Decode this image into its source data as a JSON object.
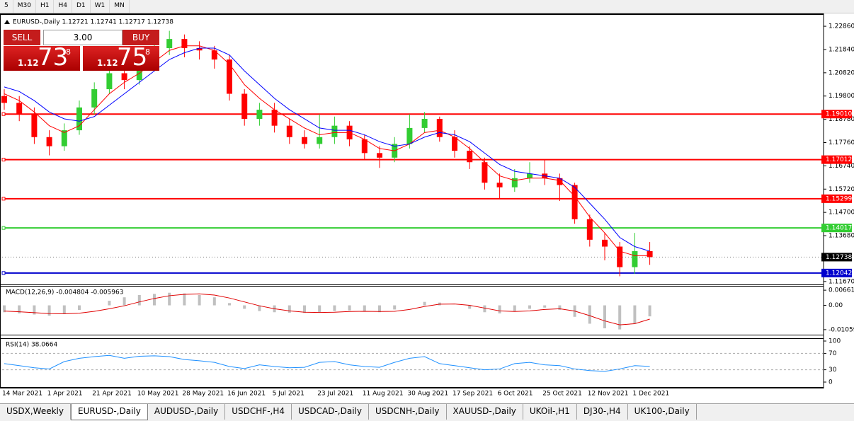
{
  "toolbar": [
    "5",
    "M30",
    "H1",
    "H4",
    "D1",
    "W1",
    "MN"
  ],
  "trade_panel": {
    "sell": "SELL",
    "buy": "BUY",
    "volume": "3.00",
    "bid": {
      "big": "1.12",
      "pips": "73",
      "point": "8"
    },
    "ask": {
      "big": "1.12",
      "pips": "75",
      "point": "8"
    }
  },
  "chart_data": [
    {
      "type": "candlestick",
      "title": "EURUSD-,Daily  1.12721 1.12741 1.12717 1.12738",
      "categories": [
        "14 Mar 2021",
        null,
        null,
        "1 Apr 2021",
        null,
        null,
        "21 Apr 2021",
        null,
        null,
        "10 May 2021",
        null,
        null,
        "28 May 2021",
        null,
        null,
        "16 Jun 2021",
        null,
        null,
        "5 Jul 2021",
        null,
        null,
        "23 Jul 2021",
        null,
        null,
        "11 Aug 2021",
        null,
        null,
        "30 Aug 2021",
        null,
        null,
        "17 Sep 2021",
        null,
        null,
        "6 Oct 2021",
        null,
        null,
        "25 Oct 2021",
        null,
        null,
        "12 Nov 2021",
        null,
        null,
        "1 Dec 2021",
        null
      ],
      "open": [
        1.198,
        1.195,
        1.19,
        1.18,
        1.176,
        1.183,
        1.193,
        1.201,
        1.208,
        1.205,
        1.215,
        1.219,
        1.223,
        1.219,
        1.218,
        1.214,
        1.199,
        1.188,
        1.192,
        1.185,
        1.18,
        1.177,
        1.18,
        1.185,
        1.179,
        1.173,
        1.171,
        1.177,
        1.184,
        1.188,
        1.18,
        1.174,
        1.169,
        1.16,
        1.158,
        1.162,
        1.164,
        1.162,
        1.159,
        1.144,
        1.135,
        1.132,
        1.123,
        1.13
      ],
      "high": [
        1.201,
        1.198,
        1.193,
        1.183,
        1.186,
        1.196,
        1.204,
        1.211,
        1.212,
        1.218,
        1.223,
        1.2266,
        1.225,
        1.222,
        1.22,
        1.216,
        1.201,
        1.195,
        1.195,
        1.188,
        1.183,
        1.19,
        1.189,
        1.187,
        1.181,
        1.176,
        1.18,
        1.19,
        1.191,
        1.189,
        1.183,
        1.176,
        1.171,
        1.164,
        1.166,
        1.169,
        1.17,
        1.164,
        1.16,
        1.146,
        1.138,
        1.134,
        1.138,
        1.134
      ],
      "low": [
        1.192,
        1.187,
        1.177,
        1.172,
        1.174,
        1.181,
        1.19,
        1.199,
        1.201,
        1.203,
        1.212,
        1.216,
        1.215,
        1.214,
        1.21,
        1.196,
        1.185,
        1.185,
        1.182,
        1.177,
        1.175,
        1.175,
        1.177,
        1.176,
        1.17,
        1.1665,
        1.169,
        1.175,
        1.182,
        1.178,
        1.171,
        1.166,
        1.157,
        1.153,
        1.156,
        1.16,
        1.159,
        1.152,
        1.142,
        1.132,
        1.126,
        1.119,
        1.12,
        1.124
      ],
      "close": [
        1.195,
        1.19,
        1.18,
        1.176,
        1.183,
        1.193,
        1.201,
        1.208,
        1.205,
        1.215,
        1.219,
        1.223,
        1.219,
        1.218,
        1.214,
        1.199,
        1.188,
        1.192,
        1.185,
        1.18,
        1.177,
        1.18,
        1.185,
        1.179,
        1.173,
        1.171,
        1.177,
        1.184,
        1.188,
        1.18,
        1.174,
        1.169,
        1.16,
        1.158,
        1.162,
        1.164,
        1.162,
        1.159,
        1.144,
        1.135,
        1.132,
        1.123,
        1.13,
        1.12738
      ],
      "up_color": "#32cd32",
      "down_color": "#ff0000",
      "series": [
        {
          "color": "#ff0000",
          "values": [
            1.199,
            1.196,
            1.191,
            1.185,
            1.182,
            1.185,
            1.192,
            1.199,
            1.204,
            1.208,
            1.213,
            1.218,
            1.22,
            1.22,
            1.218,
            1.212,
            1.203,
            1.197,
            1.192,
            1.188,
            1.184,
            1.181,
            1.182,
            1.182,
            1.179,
            1.175,
            1.174,
            1.177,
            1.182,
            1.183,
            1.18,
            1.175,
            1.169,
            1.163,
            1.161,
            1.162,
            1.162,
            1.161,
            1.154,
            1.145,
            1.138,
            1.13,
            1.128,
            1.128
          ]
        },
        {
          "color": "#0000ff",
          "values": [
            1.202,
            1.2,
            1.196,
            1.191,
            1.188,
            1.187,
            1.189,
            1.194,
            1.199,
            1.204,
            1.209,
            1.214,
            1.217,
            1.219,
            1.219,
            1.216,
            1.209,
            1.203,
            1.197,
            1.192,
            1.188,
            1.184,
            1.183,
            1.183,
            1.181,
            1.178,
            1.176,
            1.177,
            1.18,
            1.182,
            1.181,
            1.178,
            1.173,
            1.168,
            1.165,
            1.164,
            1.163,
            1.162,
            1.158,
            1.151,
            1.144,
            1.136,
            1.132,
            1.13
          ]
        }
      ],
      "levels": [
        {
          "value": 1.1901,
          "label": "1.19010",
          "color": "#ff0000"
        },
        {
          "value": 1.17012,
          "label": "1.17012",
          "color": "#ff0000"
        },
        {
          "value": 1.15299,
          "label": "1.15299",
          "color": "#ff0000"
        },
        {
          "value": 1.14017,
          "label": "1.14017",
          "color": "#32cd32"
        },
        {
          "value": 1.12042,
          "label": "1.12042",
          "color": "#0000cd"
        }
      ],
      "current_price": {
        "value": 1.12738,
        "label": "1.12738"
      },
      "ylim": [
        1.1151,
        1.2339
      ],
      "yticks": [
        {
          "value": 1.2286,
          "label": "1.22860"
        },
        {
          "value": 1.2184,
          "label": "1.21840"
        },
        {
          "value": 1.2082,
          "label": "1.20820"
        },
        {
          "value": 1.198,
          "label": "1.19800"
        },
        {
          "value": 1.1878,
          "label": "1.18780"
        },
        {
          "value": 1.1776,
          "label": "1.17760"
        },
        {
          "value": 1.1674,
          "label": "1.16740"
        },
        {
          "value": 1.1572,
          "label": "1.15720"
        },
        {
          "value": 1.147,
          "label": "1.14700"
        },
        {
          "value": 1.1368,
          "label": "1.13680"
        },
        {
          "value": 1.1167,
          "label": "1.11670"
        }
      ]
    },
    {
      "type": "macd",
      "title": "MACD(12,26,9) -0.004804 -0.005963",
      "color": "#c0c0c0",
      "values": [
        -0.003,
        -0.0035,
        -0.004,
        -0.0045,
        -0.0038,
        -0.002,
        0.0,
        0.002,
        0.0035,
        0.0045,
        0.005,
        0.0055,
        0.0052,
        0.0045,
        0.0035,
        0.001,
        -0.0015,
        -0.0025,
        -0.003,
        -0.0032,
        -0.0033,
        -0.003,
        -0.0025,
        -0.0022,
        -0.0025,
        -0.003,
        -0.0018,
        0.0,
        0.0015,
        0.0012,
        0.0,
        -0.0015,
        -0.003,
        -0.0035,
        -0.0025,
        -0.0015,
        -0.001,
        -0.002,
        -0.005,
        -0.008,
        -0.01,
        -0.0105,
        -0.008,
        -0.0048
      ],
      "series": [
        {
          "color": "#e00000",
          "values": [
            -0.0025,
            -0.0028,
            -0.0032,
            -0.0036,
            -0.0037,
            -0.0034,
            -0.0026,
            -0.0015,
            -0.0002,
            0.0015,
            0.003,
            0.0042,
            0.0048,
            0.005,
            0.0045,
            0.0032,
            0.0015,
            -0.0002,
            -0.0015,
            -0.0024,
            -0.003,
            -0.0031,
            -0.003,
            -0.0027,
            -0.0026,
            -0.0027,
            -0.0026,
            -0.0018,
            -0.0005,
            0.0005,
            0.0006,
            0.0,
            -0.0012,
            -0.0024,
            -0.0027,
            -0.0024,
            -0.0018,
            -0.0015,
            -0.0025,
            -0.0045,
            -0.0068,
            -0.0085,
            -0.008,
            -0.006
          ]
        }
      ],
      "ylim": [
        -0.0131,
        0.0085
      ],
      "yticks": [
        0.006611,
        {
          "value": 0,
          "label": "0.00"
        },
        -0.010598
      ]
    },
    {
      "type": "line",
      "title": "RSI(14) 38.0664",
      "color": "#1e90ff",
      "values": [
        45,
        40,
        35,
        32,
        50,
        58,
        62,
        65,
        58,
        63,
        64,
        62,
        55,
        52,
        48,
        38,
        33,
        42,
        38,
        35,
        36,
        48,
        50,
        42,
        38,
        36,
        48,
        58,
        62,
        45,
        40,
        35,
        30,
        32,
        45,
        48,
        42,
        40,
        32,
        28,
        26,
        32,
        40,
        38.0664
      ],
      "levels": [
        70,
        30
      ],
      "ylim": [
        -13.8,
        106.9
      ],
      "yticks": [
        100,
        70,
        30,
        0
      ]
    }
  ],
  "tabs": [
    "USDX,Weekly",
    "EURUSD-,Daily",
    "AUDUSD-,Daily",
    "USDCHF-,H4",
    "USDCAD-,Daily",
    "USDCNH-,Daily",
    "XAUUSD-,Daily",
    "UKOil-,H1",
    "DJ30-,H4",
    "UK100-,Daily"
  ],
  "active_tab": 1
}
